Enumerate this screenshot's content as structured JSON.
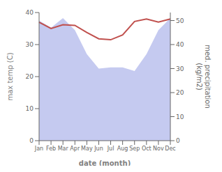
{
  "chart_data": {
    "type": "line",
    "categories": [
      "Jan",
      "Feb",
      "Mar",
      "Apr",
      "May",
      "Jun",
      "Jul",
      "Aug",
      "Sep",
      "Oct",
      "Nov",
      "Dec"
    ],
    "xlabel": "date (month)",
    "ylabel": "max temp (C)",
    "y2label": "med. precipitation\n(kg/m2)",
    "ylim": [
      0,
      40
    ],
    "yticks": [
      0,
      10,
      20,
      30,
      40
    ],
    "y2lim": [
      0,
      53.33
    ],
    "y2ticks": [
      0,
      10,
      20,
      30,
      40,
      50
    ],
    "grid": false,
    "series": [
      {
        "type": "area",
        "axis": "y2",
        "color": "#c5caf0",
        "values": [
          50.0,
          47.0,
          51.0,
          46.0,
          36.0,
          30.0,
          30.5,
          30.5,
          29.0,
          36.0,
          46.0,
          51.0
        ]
      },
      {
        "type": "line",
        "color": "#c0504d",
        "values": [
          37.0,
          35.0,
          36.2,
          36.0,
          33.8,
          31.8,
          31.5,
          33.0,
          37.2,
          38.0,
          37.0,
          38.0
        ]
      }
    ]
  }
}
